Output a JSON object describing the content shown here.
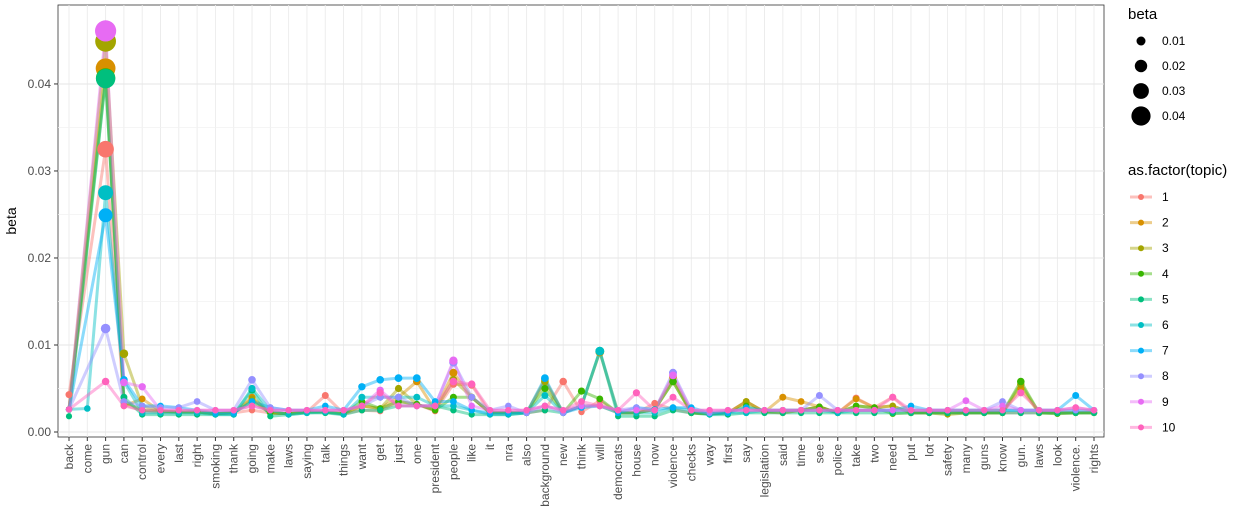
{
  "chart_data": {
    "type": "line",
    "xlabel": "",
    "ylabel": "beta",
    "ylim": [
      0,
      0.0485
    ],
    "grid": true,
    "legend_placement": "right",
    "y_ticks": [
      "0.00",
      "0.01",
      "0.02",
      "0.03",
      "0.04"
    ],
    "categories": [
      "back",
      "come",
      "gun",
      "can",
      "control",
      "every",
      "last",
      "right",
      "smoking",
      "thank",
      "going",
      "make",
      "laws",
      "saying",
      "talk",
      "things",
      "want",
      "get",
      "just",
      "one",
      "president",
      "people",
      "like",
      "it",
      "nra",
      "also",
      "background",
      "new",
      "think",
      "will",
      "democrats",
      "house",
      "now",
      "violence",
      "checks",
      "way",
      "first",
      "say",
      "legislation",
      "said",
      "time",
      "see",
      "police",
      "take",
      "two",
      "need",
      "put",
      "lot",
      "safety",
      "many",
      "guns",
      "know",
      "gun.",
      "laws",
      "look",
      "violence.",
      "rights"
    ],
    "size_legend": {
      "title": "beta",
      "labels": [
        "0.01",
        "0.02",
        "0.03",
        "0.04"
      ]
    },
    "color_legend": {
      "title": "as.factor(topic)"
    },
    "series": [
      {
        "name": "1",
        "color": "#F8766D",
        "values": [
          0.0043,
          null,
          0.0325,
          0.0032,
          0.0024,
          0.0023,
          0.0023,
          0.0023,
          0.0021,
          0.0022,
          0.0025,
          0.0022,
          0.0021,
          0.0023,
          0.0042,
          0.0021,
          0.0025,
          0.0024,
          0.0035,
          0.0032,
          0.0024,
          0.0055,
          0.0054,
          0.0022,
          0.0022,
          0.0022,
          0.0025,
          0.0058,
          0.0023,
          0.0036,
          0.0022,
          0.0022,
          0.0033,
          0.0026,
          0.0022,
          0.0021,
          0.0022,
          0.0035,
          0.0023,
          0.0022,
          0.0025,
          0.0029,
          0.0022,
          0.0039,
          0.0028,
          0.004,
          0.0022,
          0.0022,
          0.0022,
          0.0022,
          0.0022,
          0.0022,
          0.0022,
          0.0022,
          0.0022,
          0.0022,
          0.0023
        ]
      },
      {
        "name": "2",
        "color": "#D89000",
        "values": [
          0.0026,
          null,
          0.0418,
          0.003,
          0.0038,
          0.0024,
          0.0023,
          0.0023,
          0.0021,
          0.0022,
          0.004,
          0.0022,
          0.0021,
          0.0023,
          0.0023,
          0.0021,
          0.003,
          0.0027,
          0.004,
          0.0058,
          0.0025,
          0.0068,
          0.004,
          0.0022,
          0.0022,
          0.0022,
          0.006,
          0.0022,
          0.003,
          0.0092,
          0.0022,
          0.0022,
          0.0026,
          0.0063,
          0.0022,
          0.0021,
          0.0022,
          0.0035,
          0.0023,
          0.004,
          0.0035,
          0.0029,
          0.0022,
          0.0038,
          0.0028,
          0.003,
          0.0022,
          0.0022,
          0.0022,
          0.0022,
          0.0022,
          0.0022,
          0.005,
          0.0022,
          0.0022,
          0.0022,
          0.0022
        ]
      },
      {
        "name": "3",
        "color": "#A3A500",
        "values": [
          0.0026,
          null,
          0.0449,
          0.009,
          0.003,
          0.0024,
          0.0023,
          0.0023,
          0.0021,
          0.0022,
          0.0038,
          0.0022,
          0.0021,
          0.0023,
          0.0023,
          0.0021,
          0.003,
          0.0027,
          0.005,
          0.0032,
          0.0025,
          0.006,
          0.004,
          0.0022,
          0.0022,
          0.0022,
          0.0058,
          0.0022,
          0.003,
          0.003,
          0.0022,
          0.0022,
          0.0026,
          0.0058,
          0.0022,
          0.0021,
          0.0022,
          0.0035,
          0.0023,
          0.0022,
          0.0025,
          0.0029,
          0.0022,
          0.003,
          0.0028,
          0.003,
          0.0022,
          0.0022,
          0.002,
          0.0022,
          0.0022,
          0.0022,
          0.0055,
          0.0022,
          0.0022,
          0.0022,
          0.0022
        ]
      },
      {
        "name": "4",
        "color": "#39B600",
        "values": [
          0.0026,
          null,
          0.0407,
          0.0035,
          0.0025,
          0.0024,
          0.0023,
          0.0023,
          0.0021,
          0.0022,
          0.0035,
          0.0022,
          0.0021,
          0.0023,
          0.0023,
          0.0021,
          0.0035,
          0.0027,
          0.0035,
          0.0032,
          0.0025,
          0.004,
          0.004,
          0.0022,
          0.0022,
          0.0022,
          0.005,
          0.0022,
          0.0047,
          0.0038,
          0.0022,
          0.0022,
          0.0026,
          0.0058,
          0.0022,
          0.0021,
          0.0022,
          0.003,
          0.0023,
          0.0025,
          0.0025,
          0.0029,
          0.0022,
          0.003,
          0.0028,
          0.0021,
          0.0022,
          0.0022,
          0.0022,
          0.0022,
          0.0022,
          0.0022,
          0.0058,
          0.0022,
          0.0021,
          0.0022,
          0.0022
        ]
      },
      {
        "name": "5",
        "color": "#00BF7D",
        "values": [
          0.0018,
          null,
          0.0406,
          0.004,
          0.002,
          0.002,
          0.002,
          0.002,
          0.002,
          0.002,
          0.0048,
          0.0018,
          0.002,
          0.0022,
          0.0022,
          0.002,
          0.0025,
          0.0025,
          0.003,
          0.003,
          0.003,
          0.0025,
          0.002,
          0.002,
          0.002,
          0.0022,
          0.0025,
          0.0022,
          0.003,
          0.0093,
          0.0018,
          0.0018,
          0.0018,
          0.0025,
          0.0022,
          0.002,
          0.002,
          0.0022,
          0.0022,
          0.0022,
          0.0022,
          0.0022,
          0.0022,
          0.0022,
          0.0022,
          0.0022,
          0.0022,
          0.0022,
          0.0022,
          0.0022,
          0.0022,
          0.0022,
          0.0022,
          0.0022,
          0.0022,
          0.0022,
          0.0022
        ]
      },
      {
        "name": "6",
        "color": "#00BFC4",
        "values": [
          0.0026,
          0.0027,
          0.0275,
          0.0058,
          0.0022,
          0.0022,
          0.0022,
          0.0022,
          0.002,
          0.002,
          0.005,
          0.0025,
          0.002,
          0.0022,
          0.0023,
          0.002,
          0.004,
          0.004,
          0.004,
          0.004,
          0.003,
          0.003,
          0.0025,
          0.002,
          0.002,
          0.0022,
          0.0042,
          0.0022,
          0.003,
          0.0093,
          0.0022,
          0.0022,
          0.0022,
          0.0028,
          0.0025,
          0.002,
          0.0022,
          0.0022,
          0.0025,
          0.0025,
          0.0025,
          0.0025,
          0.0022,
          0.0025,
          0.0025,
          0.0025,
          0.0025,
          0.0025,
          0.0025,
          0.0025,
          0.0025,
          0.0025,
          0.0025,
          0.0025,
          0.0025,
          0.0025,
          0.0025
        ]
      },
      {
        "name": "7",
        "color": "#00B0F6",
        "values": [
          0.0026,
          null,
          0.0249,
          0.006,
          0.003,
          0.003,
          0.0028,
          0.0025,
          0.0022,
          0.0022,
          0.0035,
          0.0028,
          0.0025,
          0.0025,
          0.003,
          0.0025,
          0.0052,
          0.006,
          0.0062,
          0.0062,
          0.0035,
          0.0035,
          0.0025,
          0.0022,
          0.0022,
          0.0022,
          0.0062,
          0.0022,
          0.0028,
          0.003,
          0.0022,
          0.0028,
          0.0026,
          0.0028,
          0.0028,
          0.0022,
          0.0022,
          0.0028,
          0.0025,
          0.0025,
          0.0025,
          0.0025,
          0.0025,
          0.0025,
          0.0025,
          0.0025,
          0.003,
          0.0025,
          0.0025,
          0.0025,
          0.0025,
          0.0025,
          0.0025,
          0.0025,
          0.0025,
          0.0042,
          0.0025
        ]
      },
      {
        "name": "8",
        "color": "#9590FF",
        "values": [
          0.0026,
          null,
          0.0119,
          0.0035,
          0.003,
          0.0028,
          0.0028,
          0.0035,
          0.0025,
          0.0025,
          0.006,
          0.0028,
          0.0025,
          0.0025,
          0.0025,
          0.0025,
          0.003,
          0.004,
          0.004,
          0.003,
          0.003,
          0.008,
          0.004,
          0.0025,
          0.003,
          0.0022,
          0.003,
          0.0022,
          0.003,
          0.003,
          0.0025,
          0.0028,
          0.0025,
          0.0068,
          0.0025,
          0.0022,
          0.0025,
          0.0025,
          0.0025,
          0.0025,
          0.0025,
          0.0042,
          0.0025,
          0.0025,
          0.0025,
          0.0025,
          0.0025,
          0.0025,
          0.0025,
          0.0025,
          0.0025,
          0.0035,
          0.0025,
          0.0025,
          0.0025,
          0.0025,
          0.0025
        ]
      },
      {
        "name": "9",
        "color": "#E76BF3",
        "values": [
          0.0026,
          null,
          0.0461,
          0.0057,
          0.0052,
          0.0025,
          0.0025,
          0.0025,
          0.0025,
          0.0025,
          0.003,
          0.0025,
          0.0025,
          0.0025,
          0.0025,
          0.0025,
          0.003,
          0.0048,
          0.003,
          0.003,
          0.003,
          0.0082,
          0.003,
          0.0025,
          0.0025,
          0.0025,
          0.003,
          0.0025,
          0.003,
          0.003,
          0.0025,
          0.0025,
          0.0025,
          0.0065,
          0.0025,
          0.0025,
          0.0025,
          0.0025,
          0.0025,
          0.0025,
          0.0025,
          0.0025,
          0.0025,
          0.0025,
          0.0025,
          0.0025,
          0.0025,
          0.0025,
          0.0025,
          0.0036,
          0.0025,
          0.003,
          0.0025,
          0.0025,
          0.0025,
          0.0028,
          0.0025
        ]
      },
      {
        "name": "10",
        "color": "#FF62BC",
        "values": [
          0.0026,
          null,
          0.0058,
          0.003,
          0.0025,
          0.0025,
          0.0025,
          0.0025,
          0.0025,
          0.0025,
          0.003,
          0.0025,
          0.0025,
          0.0025,
          0.0025,
          0.0025,
          0.003,
          0.0045,
          0.003,
          0.003,
          0.003,
          0.0058,
          0.0055,
          0.0025,
          0.0025,
          0.0025,
          0.003,
          0.0025,
          0.0035,
          0.003,
          0.0025,
          0.0045,
          0.0025,
          0.004,
          0.0025,
          0.0025,
          0.0025,
          0.0025,
          0.0025,
          0.0025,
          0.0025,
          0.0025,
          0.0025,
          0.0025,
          0.0025,
          0.004,
          0.0025,
          0.0025,
          0.0025,
          0.0025,
          0.0025,
          0.0025,
          0.0045,
          0.0025,
          0.0025,
          0.0028,
          0.0025
        ]
      }
    ]
  }
}
